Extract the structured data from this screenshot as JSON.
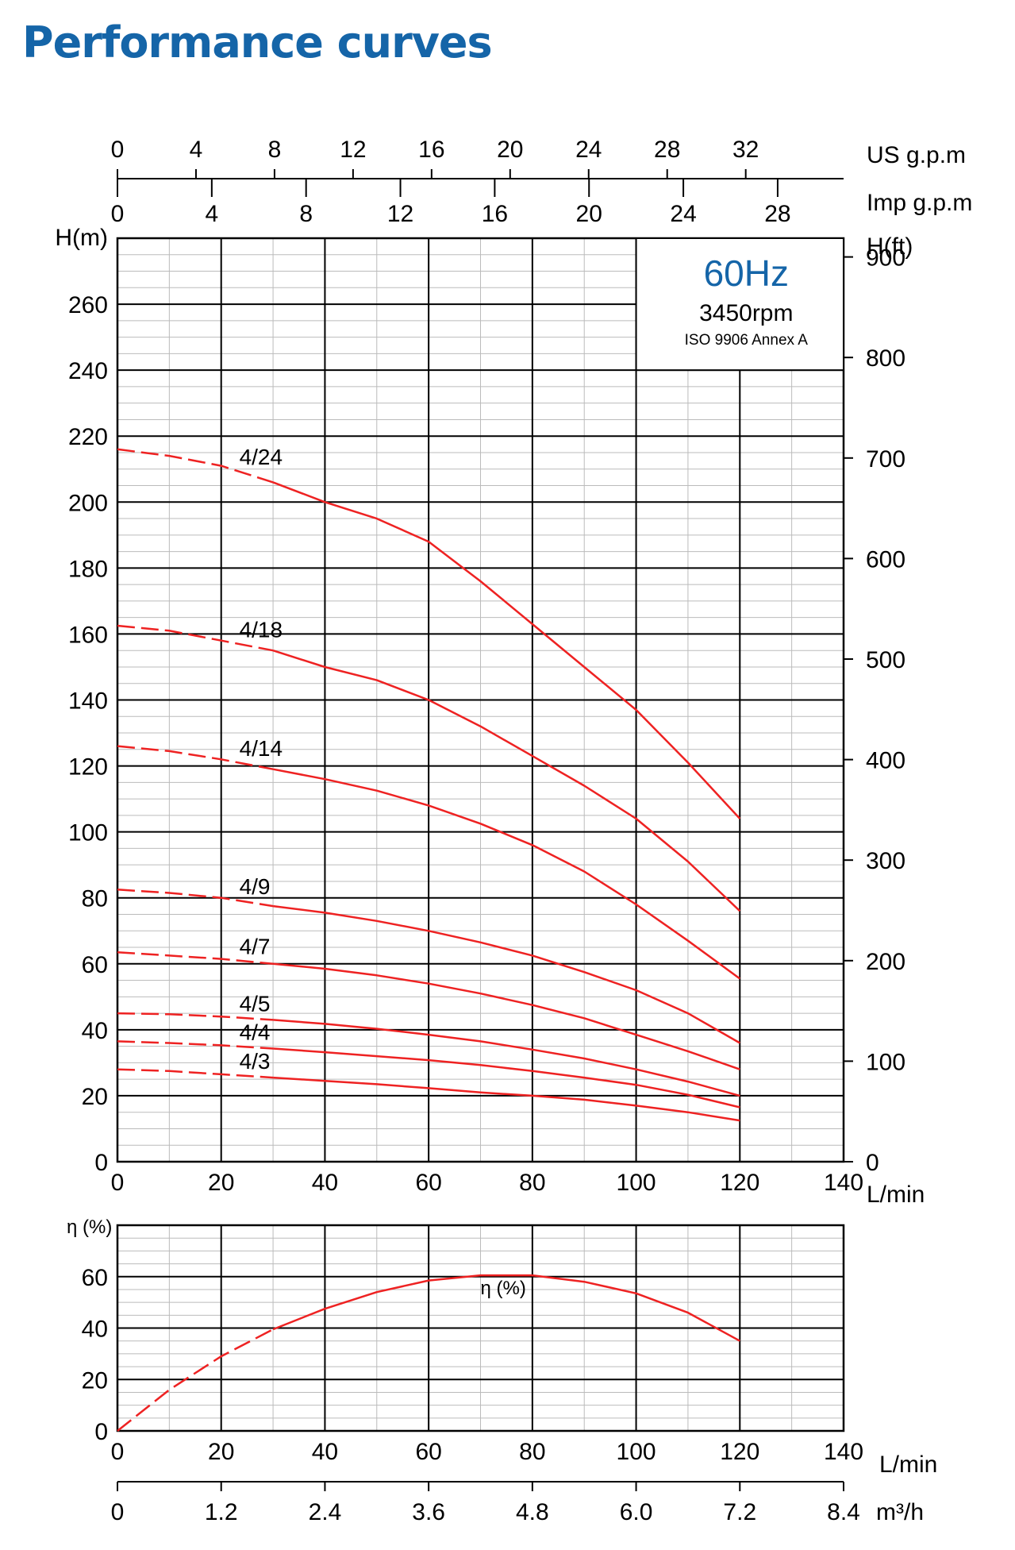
{
  "page": {
    "title": "Performance curves"
  },
  "colors": {
    "title": "#1565a8",
    "curve": "#ee2222",
    "hz_label": "#1565a8",
    "grid_major": "#000000",
    "grid_minor": "#bbbbbb"
  },
  "chart_data": [
    {
      "type": "line",
      "title": "",
      "xlabel": "L/min",
      "ylabel": "H(m)",
      "ylabel_right": "H(ft)",
      "xlim": [
        0,
        140
      ],
      "ylim": [
        0,
        280
      ],
      "x_ticks": [
        0,
        20,
        40,
        60,
        80,
        100,
        120,
        140
      ],
      "y_ticks": [
        0,
        20,
        40,
        60,
        80,
        100,
        120,
        140,
        160,
        180,
        200,
        220,
        240,
        260
      ],
      "right_axis": {
        "label": "H(ft)",
        "ticks": [
          0,
          100,
          200,
          300,
          400,
          500,
          600,
          700,
          800,
          900
        ]
      },
      "top_axes": [
        {
          "label": "US g.p.m",
          "ticks": [
            0,
            4,
            8,
            12,
            16,
            20,
            24,
            28,
            32
          ]
        },
        {
          "label": "Imp g.p.m",
          "ticks": [
            0,
            4,
            8,
            12,
            16,
            20,
            24,
            28
          ]
        }
      ],
      "annotation": {
        "frequency": "60Hz",
        "speed": "3450rpm",
        "standard": "ISO 9906 Annex A"
      },
      "dashed_until_x": 30,
      "grid": true,
      "series": [
        {
          "name": "4/24",
          "x": [
            0,
            10,
            20,
            30,
            40,
            50,
            60,
            70,
            80,
            90,
            100,
            110,
            120
          ],
          "y": [
            216,
            214,
            211,
            206,
            200,
            195,
            188,
            176,
            163,
            150,
            137,
            121,
            104
          ]
        },
        {
          "name": "4/18",
          "x": [
            0,
            10,
            20,
            30,
            40,
            50,
            60,
            70,
            80,
            90,
            100,
            110,
            120
          ],
          "y": [
            162.5,
            161,
            158,
            155,
            150,
            146,
            140,
            132,
            123,
            114,
            104,
            91,
            76
          ]
        },
        {
          "name": "4/14",
          "x": [
            0,
            10,
            20,
            30,
            40,
            50,
            60,
            70,
            80,
            90,
            100,
            110,
            120
          ],
          "y": [
            126,
            124.5,
            122,
            119,
            116,
            112.5,
            108,
            102.5,
            96,
            88,
            78,
            67,
            55.5
          ]
        },
        {
          "name": "4/9",
          "x": [
            0,
            10,
            20,
            30,
            40,
            50,
            60,
            70,
            80,
            90,
            100,
            110,
            120
          ],
          "y": [
            82.5,
            81.5,
            80,
            77.5,
            75.5,
            73,
            70,
            66.5,
            62.5,
            57.5,
            52,
            45,
            36
          ]
        },
        {
          "name": "4/7",
          "x": [
            0,
            10,
            20,
            30,
            40,
            50,
            60,
            70,
            80,
            90,
            100,
            110,
            120
          ],
          "y": [
            63.5,
            62.5,
            61.5,
            60,
            58.5,
            56.5,
            54,
            51,
            47.5,
            43.5,
            38.5,
            33.5,
            28
          ]
        },
        {
          "name": "4/5",
          "x": [
            0,
            10,
            20,
            30,
            40,
            50,
            60,
            70,
            80,
            90,
            100,
            110,
            120
          ],
          "y": [
            45,
            44.7,
            44,
            43,
            41.8,
            40.3,
            38.5,
            36.5,
            34,
            31.3,
            28,
            24.3,
            20
          ]
        },
        {
          "name": "4/4",
          "x": [
            0,
            10,
            20,
            30,
            40,
            50,
            60,
            70,
            80,
            90,
            100,
            110,
            120
          ],
          "y": [
            36.5,
            36,
            35.3,
            34.3,
            33.2,
            32,
            30.8,
            29.3,
            27.5,
            25.5,
            23.3,
            20.3,
            16.5
          ]
        },
        {
          "name": "4/3",
          "x": [
            0,
            10,
            20,
            30,
            40,
            50,
            60,
            70,
            80,
            90,
            100,
            110,
            120
          ],
          "y": [
            28,
            27.5,
            26.5,
            25.5,
            24.5,
            23.5,
            22.3,
            21,
            20,
            18.8,
            17,
            15,
            12.5
          ]
        }
      ]
    },
    {
      "type": "line",
      "title": "",
      "xlabel": "L/min",
      "ylabel": "η (%)",
      "xlim": [
        0,
        140
      ],
      "ylim": [
        0,
        80
      ],
      "x_ticks": [
        0,
        20,
        40,
        60,
        80,
        100,
        120,
        140
      ],
      "y_ticks": [
        0,
        20,
        40,
        60
      ],
      "bottom_axis": {
        "label": "m³/h",
        "ticks": [
          "0",
          "1.2",
          "2.4",
          "3.6",
          "4.8",
          "6.0",
          "7.2",
          "8.4"
        ]
      },
      "dashed_until_x": 30,
      "grid": true,
      "series": [
        {
          "name": "η (%)",
          "x": [
            0,
            10,
            20,
            30,
            40,
            50,
            60,
            70,
            80,
            90,
            100,
            110,
            120
          ],
          "y": [
            0,
            16,
            29,
            39.5,
            47.5,
            54,
            58.5,
            60.5,
            60.5,
            58,
            53.5,
            46,
            35
          ]
        }
      ]
    }
  ]
}
